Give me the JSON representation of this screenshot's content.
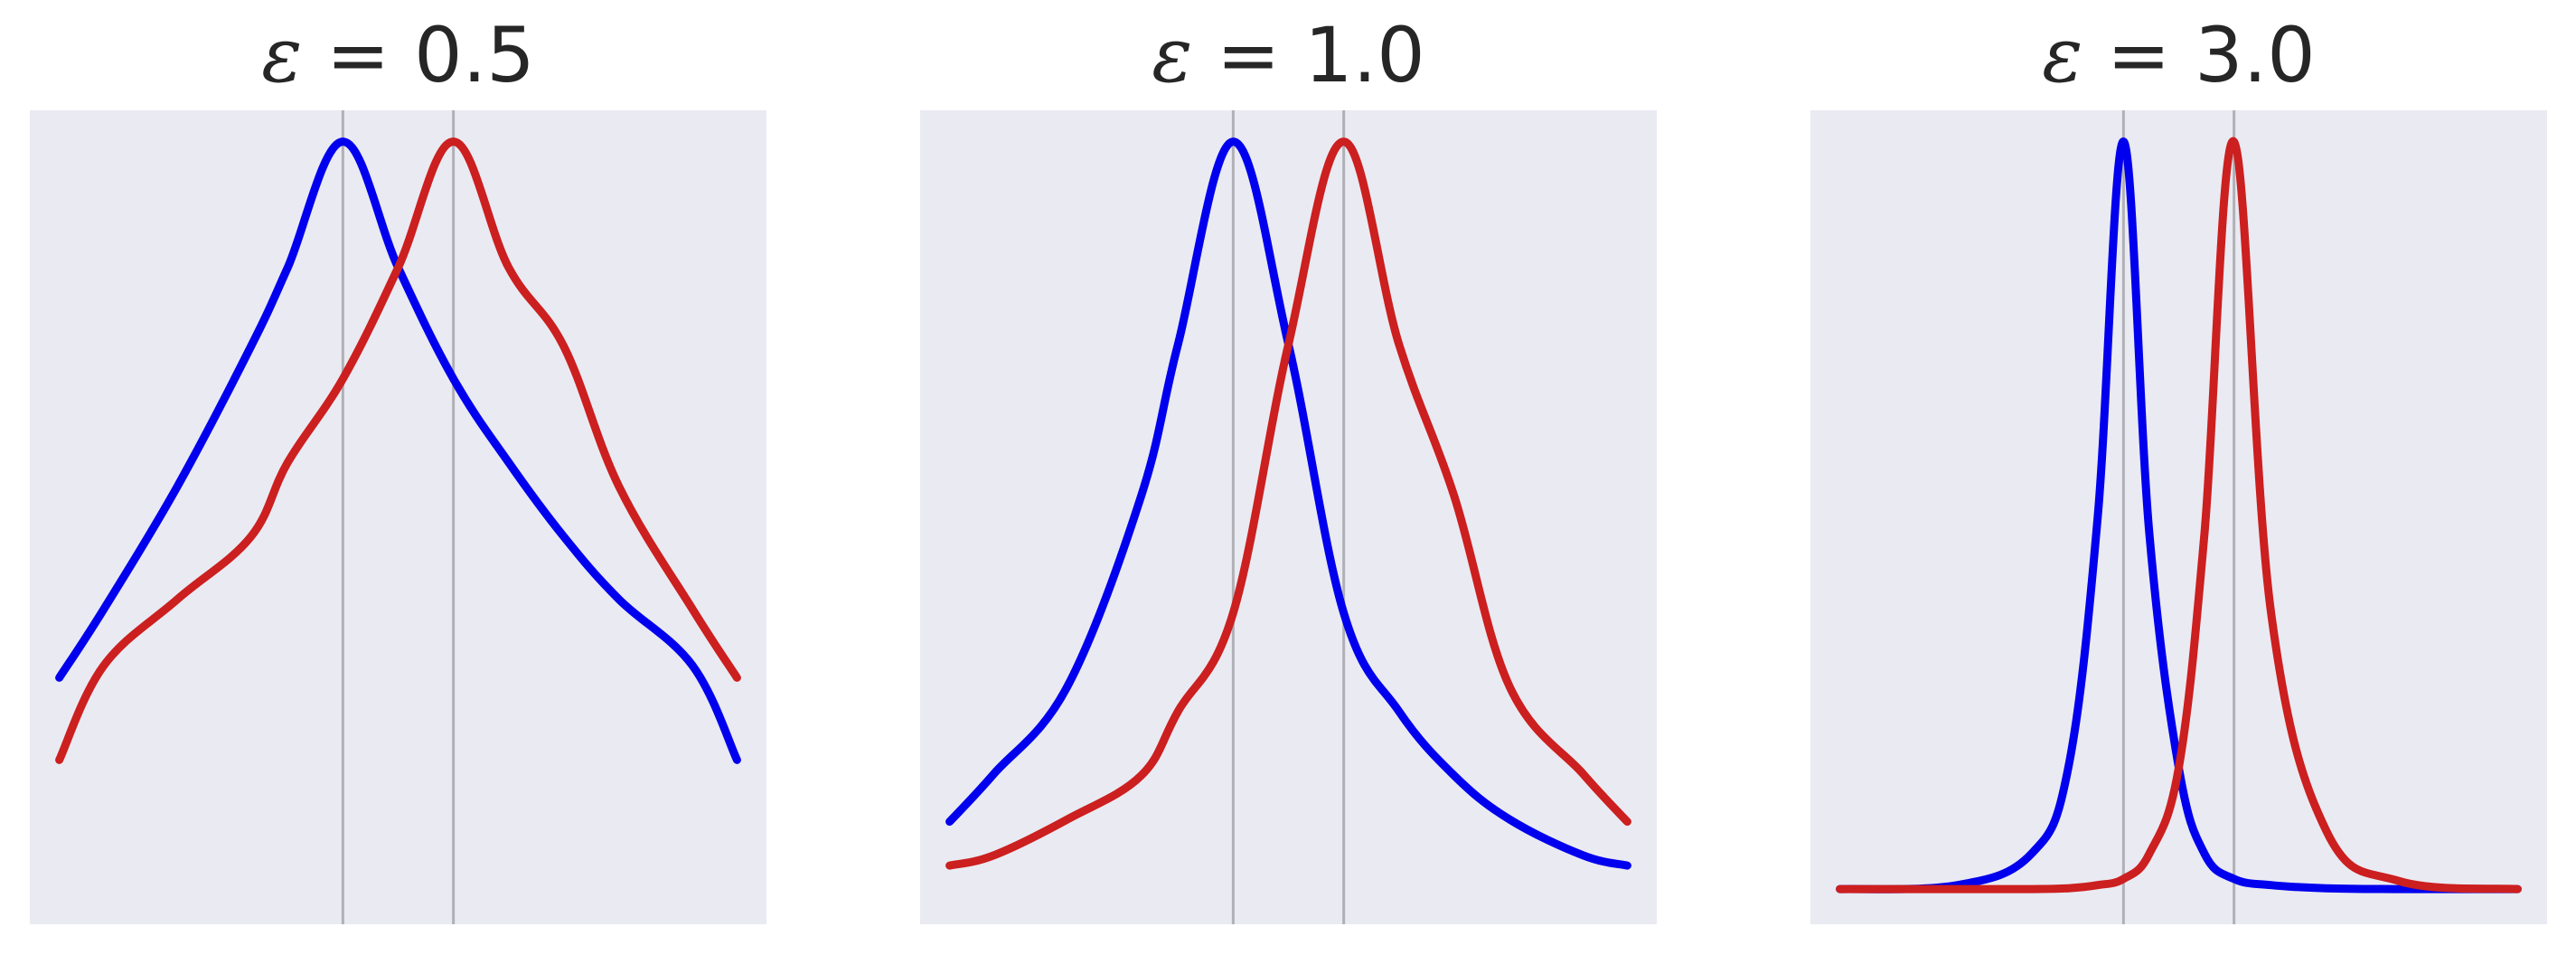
{
  "chart_data": [
    {
      "type": "line",
      "title": "ε = 0.5",
      "epsilon": 0.5,
      "xlabel": "",
      "ylabel": "",
      "xlim": [
        -1.0,
        1.0
      ],
      "ylim": [
        0.0,
        1.04
      ],
      "grid": "vertical lines at peaks",
      "peaks": [
        -0.15,
        0.15
      ],
      "x": [
        -0.92,
        -0.8,
        -0.6,
        -0.4,
        -0.3,
        -0.15,
        0.0,
        0.15,
        0.3,
        0.45,
        0.6,
        0.8,
        0.92
      ],
      "series": [
        {
          "color": "#0000ee",
          "peak": -0.15,
          "values": [
            0.315,
            0.402,
            0.559,
            0.738,
            0.839,
            1.0,
            0.839,
            0.697,
            0.59,
            0.495,
            0.415,
            0.33,
            0.21
          ]
        },
        {
          "color": "#cc1f1f",
          "peak": 0.15,
          "values": [
            0.21,
            0.33,
            0.415,
            0.495,
            0.59,
            0.697,
            0.839,
            1.0,
            0.839,
            0.738,
            0.559,
            0.402,
            0.315
          ]
        }
      ]
    },
    {
      "type": "line",
      "title": "ε = 1.0",
      "epsilon": 1.0,
      "xlabel": "",
      "ylabel": "",
      "xlim": [
        -1.0,
        1.0
      ],
      "ylim": [
        0.0,
        1.04
      ],
      "grid": "vertical lines at peaks",
      "peaks": [
        -0.15,
        0.15
      ],
      "x": [
        -0.92,
        -0.8,
        -0.6,
        -0.4,
        -0.3,
        -0.15,
        0.0,
        0.15,
        0.3,
        0.45,
        0.6,
        0.8,
        0.92
      ],
      "series": [
        {
          "color": "#0000ee",
          "peak": -0.15,
          "values": [
            0.131,
            0.192,
            0.304,
            0.547,
            0.741,
            1.0,
            0.741,
            0.398,
            0.272,
            0.19,
            0.134,
            0.088,
            0.075
          ]
        },
        {
          "color": "#cc1f1f",
          "peak": 0.15,
          "values": [
            0.075,
            0.088,
            0.134,
            0.19,
            0.272,
            0.398,
            0.741,
            1.0,
            0.741,
            0.547,
            0.304,
            0.192,
            0.131
          ]
        }
      ]
    },
    {
      "type": "line",
      "title": "ε = 3.0",
      "epsilon": 3.0,
      "xlabel": "",
      "ylabel": "",
      "xlim": [
        -1.0,
        1.0
      ],
      "ylim": [
        0.0,
        1.04
      ],
      "grid": "vertical lines at peaks",
      "peaks": [
        -0.15,
        0.15
      ],
      "x": [
        -0.92,
        -0.6,
        -0.4,
        -0.3,
        -0.22,
        -0.15,
        -0.08,
        0.0,
        0.07,
        0.15,
        0.25,
        0.4,
        0.6,
        0.92
      ],
      "series": [
        {
          "color": "#0000ee",
          "peak": -0.15,
          "values": [
            0.045,
            0.05,
            0.09,
            0.2,
            0.52,
            1.0,
            0.5,
            0.2,
            0.09,
            0.058,
            0.05,
            0.046,
            0.045,
            0.045
          ]
        },
        {
          "color": "#cc1f1f",
          "peak": 0.15,
          "values": [
            0.045,
            0.045,
            0.045,
            0.046,
            0.05,
            0.058,
            0.09,
            0.2,
            0.5,
            1.0,
            0.4,
            0.12,
            0.055,
            0.045
          ]
        }
      ]
    }
  ]
}
